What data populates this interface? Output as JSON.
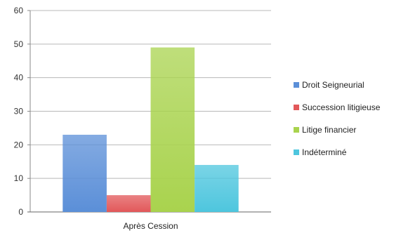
{
  "chart_data": {
    "type": "bar",
    "categories": [
      "Après Cession"
    ],
    "series": [
      {
        "name": "Droit Seigneurial",
        "values": [
          23
        ],
        "color": "#5b8fd8"
      },
      {
        "name": "Succession litigieuse",
        "values": [
          5
        ],
        "color": "#e2585a"
      },
      {
        "name": "Litige financier",
        "values": [
          49
        ],
        "color": "#a9d34e"
      },
      {
        "name": "Indéterminé",
        "values": [
          14
        ],
        "color": "#4ec6de"
      }
    ],
    "ylim": [
      0,
      60
    ],
    "yticks": [
      0,
      10,
      20,
      30,
      40,
      50,
      60
    ],
    "grid": true,
    "legend_position": "right",
    "title": "",
    "xlabel": "",
    "ylabel": ""
  }
}
